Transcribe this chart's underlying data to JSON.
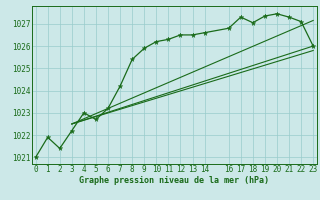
{
  "xlabel": "Graphe pression niveau de la mer (hPa)",
  "bg_color": "#cce8e8",
  "grid_color": "#99cccc",
  "line_color": "#1a6b1a",
  "ylim": [
    1020.7,
    1027.8
  ],
  "xlim": [
    -0.3,
    23.3
  ],
  "yticks": [
    1021,
    1022,
    1023,
    1024,
    1025,
    1026,
    1027
  ],
  "xticks": [
    0,
    1,
    2,
    3,
    4,
    5,
    6,
    7,
    8,
    9,
    10,
    11,
    12,
    13,
    14,
    16,
    17,
    18,
    19,
    20,
    21,
    22,
    23
  ],
  "xtick_labels": [
    "0",
    "1",
    "2",
    "3",
    "4",
    "5",
    "6",
    "7",
    "8",
    "9",
    "10",
    "11",
    "12",
    "13",
    "14",
    "16",
    "17",
    "18",
    "19",
    "20",
    "21",
    "22",
    "23"
  ],
  "main_data_x": [
    0,
    1,
    2,
    3,
    4,
    5,
    6,
    7,
    8,
    9,
    10,
    11,
    12,
    13,
    14,
    16,
    17,
    18,
    19,
    20,
    21,
    22,
    23
  ],
  "main_data_y": [
    1021.0,
    1021.9,
    1021.4,
    1022.2,
    1023.0,
    1022.7,
    1023.2,
    1024.2,
    1025.4,
    1025.9,
    1026.2,
    1026.3,
    1026.5,
    1026.5,
    1026.6,
    1026.8,
    1027.3,
    1027.05,
    1027.35,
    1027.45,
    1027.3,
    1027.1,
    1026.0
  ],
  "trend1_x": [
    3,
    23
  ],
  "trend1_y": [
    1022.5,
    1026.0
  ],
  "trend2_x": [
    3,
    23
  ],
  "trend2_y": [
    1022.5,
    1025.8
  ],
  "trend3_x": [
    3,
    23
  ],
  "trend3_y": [
    1022.5,
    1027.15
  ],
  "font_size_tick": 5.5,
  "font_size_label": 6.0
}
